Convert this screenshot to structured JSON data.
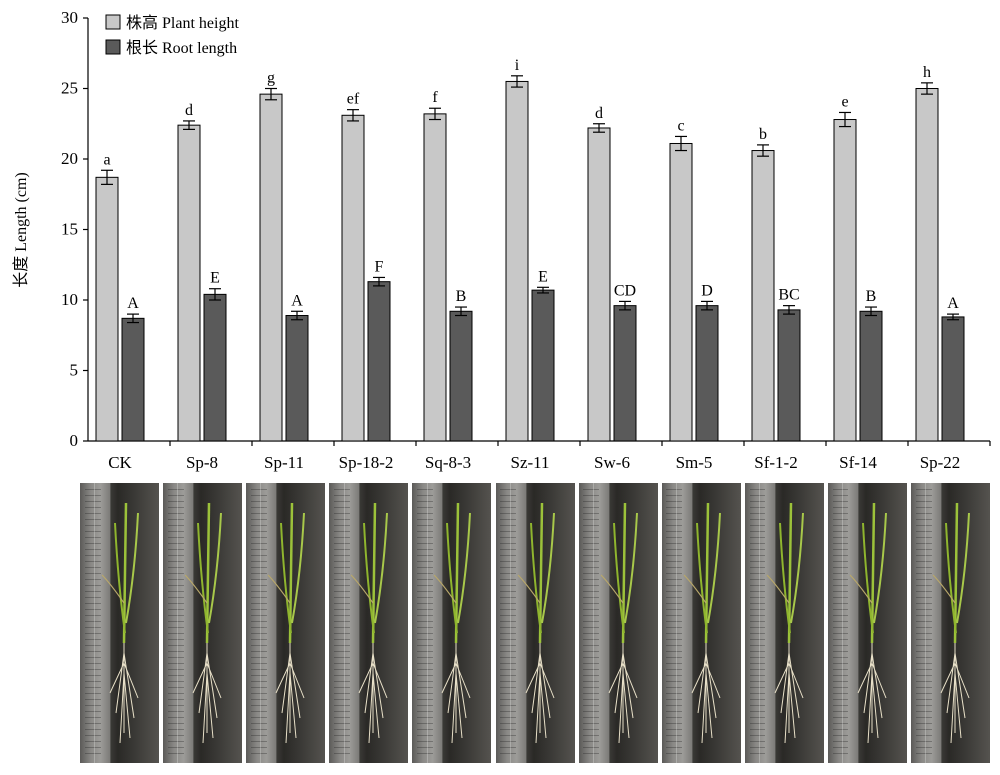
{
  "chart_data": {
    "type": "bar",
    "ylabel": "长度 Length (cm)",
    "ylim": [
      0,
      30
    ],
    "yticks": [
      "0",
      "5",
      "10",
      "15",
      "20",
      "25",
      "30"
    ],
    "grid": false,
    "legend_position": "top-left",
    "categories": [
      "CK",
      "Sp-8",
      "Sp-11",
      "Sp-18-2",
      "Sq-8-3",
      "Sz-11",
      "Sw-6",
      "Sm-5",
      "Sf-1-2",
      "Sf-14",
      "Sp-22"
    ],
    "series": [
      {
        "name": "株高 Plant height",
        "color": "#c8c8c8",
        "values": [
          18.7,
          22.4,
          24.6,
          23.1,
          23.2,
          25.5,
          22.2,
          21.1,
          20.6,
          22.8,
          25.0
        ],
        "errors": [
          0.5,
          0.3,
          0.4,
          0.4,
          0.4,
          0.4,
          0.3,
          0.5,
          0.4,
          0.5,
          0.4
        ],
        "labels": [
          "a",
          "d",
          "g",
          "ef",
          "f",
          "i",
          "d",
          "c",
          "b",
          "e",
          "h"
        ]
      },
      {
        "name": "根长 Root length",
        "color": "#5a5a5a",
        "values": [
          8.7,
          10.4,
          8.9,
          11.3,
          9.2,
          10.7,
          9.6,
          9.6,
          9.3,
          9.2,
          8.8
        ],
        "errors": [
          0.3,
          0.4,
          0.3,
          0.3,
          0.3,
          0.2,
          0.3,
          0.3,
          0.3,
          0.3,
          0.2
        ],
        "labels": [
          "A",
          "E",
          "A",
          "F",
          "B",
          "E",
          "CD",
          "D",
          "BC",
          "B",
          "A"
        ]
      }
    ]
  },
  "photos": {
    "count": 11,
    "icon": "seedling-photo-icon"
  }
}
